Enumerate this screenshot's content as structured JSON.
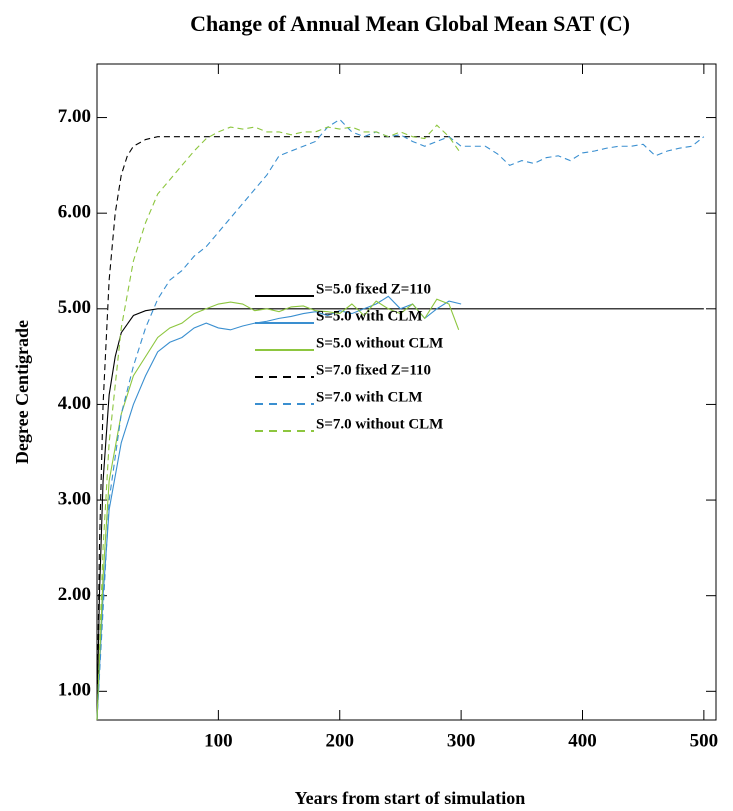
{
  "chart_data": {
    "type": "line",
    "title": "Change of Annual Mean Global Mean SAT (C)",
    "x_label": "Years from start of simulation",
    "y_label": "Degree Centigrade",
    "xlim": [
      0,
      510
    ],
    "ylim": [
      0.7,
      7.56
    ],
    "xticks": [
      100,
      200,
      300,
      400,
      500
    ],
    "yticks": [
      {
        "value": 1,
        "label": "1.00"
      },
      {
        "value": 2,
        "label": "2.00"
      },
      {
        "value": 3,
        "label": "3.00"
      },
      {
        "value": 4,
        "label": "4.00"
      },
      {
        "value": 5,
        "label": "5.00"
      },
      {
        "value": 6,
        "label": "6.00"
      },
      {
        "value": 7,
        "label": "7.00"
      }
    ],
    "series": [
      {
        "name": "S=5.0 fixed Z=110",
        "color": "#000000",
        "dashed": false,
        "x": [
          0,
          2,
          5,
          10,
          15,
          20,
          30,
          40,
          50,
          100,
          200,
          300,
          400,
          500
        ],
        "values": [
          0.7,
          2.0,
          3.2,
          4.1,
          4.5,
          4.75,
          4.93,
          4.98,
          5.0,
          5.0,
          5.0,
          5.0,
          5.0,
          5.0
        ]
      },
      {
        "name": "S=5.0 with CLM",
        "color": "#3a8fd0",
        "dashed": false,
        "x": [
          0,
          5,
          10,
          20,
          30,
          40,
          50,
          60,
          70,
          80,
          90,
          100,
          110,
          120,
          130,
          140,
          150,
          160,
          170,
          180,
          190,
          200,
          210,
          220,
          230,
          240,
          250,
          260,
          270,
          280,
          290,
          300
        ],
        "values": [
          0.7,
          2.0,
          2.9,
          3.6,
          4.0,
          4.3,
          4.55,
          4.65,
          4.7,
          4.8,
          4.85,
          4.8,
          4.78,
          4.82,
          4.85,
          4.87,
          4.9,
          4.92,
          4.95,
          4.97,
          4.93,
          4.98,
          4.95,
          5.0,
          5.05,
          5.13,
          5.0,
          5.05,
          4.9,
          5.0,
          5.08,
          5.05
        ]
      },
      {
        "name": "S=5.0 without CLM",
        "color": "#8dc63f",
        "dashed": false,
        "x": [
          0,
          5,
          10,
          20,
          30,
          40,
          50,
          60,
          70,
          80,
          90,
          100,
          110,
          120,
          130,
          140,
          150,
          160,
          170,
          180,
          190,
          200,
          210,
          220,
          230,
          240,
          250,
          260,
          270,
          280,
          290,
          298
        ],
        "values": [
          0.7,
          2.2,
          3.2,
          3.9,
          4.3,
          4.5,
          4.7,
          4.8,
          4.85,
          4.95,
          5.0,
          5.05,
          5.07,
          5.05,
          4.98,
          5.0,
          4.97,
          5.02,
          5.03,
          4.98,
          4.97,
          4.95,
          5.05,
          4.93,
          5.08,
          5.0,
          4.95,
          5.05,
          4.9,
          5.1,
          5.05,
          4.78
        ]
      },
      {
        "name": "S=7.0 fixed Z=110",
        "color": "#000000",
        "dashed": true,
        "x": [
          0,
          2,
          5,
          10,
          15,
          20,
          25,
          30,
          40,
          50,
          500
        ],
        "values": [
          0.7,
          2.5,
          4.0,
          5.3,
          6.0,
          6.4,
          6.6,
          6.7,
          6.77,
          6.8,
          6.8
        ]
      },
      {
        "name": "S=7.0 with CLM",
        "color": "#3a8fd0",
        "dashed": true,
        "x": [
          0,
          10,
          20,
          30,
          40,
          50,
          60,
          70,
          80,
          90,
          100,
          110,
          120,
          130,
          140,
          150,
          160,
          170,
          180,
          190,
          200,
          210,
          220,
          230,
          240,
          250,
          260,
          270,
          280,
          290,
          300,
          310,
          320,
          330,
          340,
          350,
          360,
          370,
          380,
          390,
          400,
          410,
          420,
          430,
          440,
          450,
          460,
          470,
          480,
          490,
          500
        ],
        "values": [
          0.7,
          3.0,
          3.9,
          4.4,
          4.8,
          5.1,
          5.3,
          5.4,
          5.55,
          5.65,
          5.8,
          5.95,
          6.1,
          6.25,
          6.4,
          6.6,
          6.65,
          6.7,
          6.75,
          6.9,
          6.98,
          6.85,
          6.8,
          6.85,
          6.8,
          6.82,
          6.75,
          6.7,
          6.75,
          6.8,
          6.7,
          6.7,
          6.7,
          6.62,
          6.5,
          6.55,
          6.52,
          6.58,
          6.6,
          6.55,
          6.63,
          6.65,
          6.68,
          6.7,
          6.7,
          6.72,
          6.6,
          6.65,
          6.68,
          6.7,
          6.8
        ]
      },
      {
        "name": "S=7.0 without CLM",
        "color": "#8dc63f",
        "dashed": true,
        "x": [
          0,
          5,
          10,
          20,
          30,
          40,
          50,
          60,
          70,
          80,
          90,
          100,
          110,
          120,
          130,
          140,
          150,
          160,
          170,
          180,
          190,
          200,
          210,
          220,
          230,
          240,
          250,
          260,
          270,
          280,
          290,
          300
        ],
        "values": [
          0.7,
          2.5,
          3.6,
          4.8,
          5.5,
          5.9,
          6.2,
          6.35,
          6.5,
          6.65,
          6.78,
          6.85,
          6.9,
          6.88,
          6.9,
          6.85,
          6.85,
          6.82,
          6.85,
          6.85,
          6.9,
          6.88,
          6.9,
          6.85,
          6.85,
          6.8,
          6.85,
          6.8,
          6.78,
          6.92,
          6.8,
          6.62
        ]
      }
    ]
  }
}
